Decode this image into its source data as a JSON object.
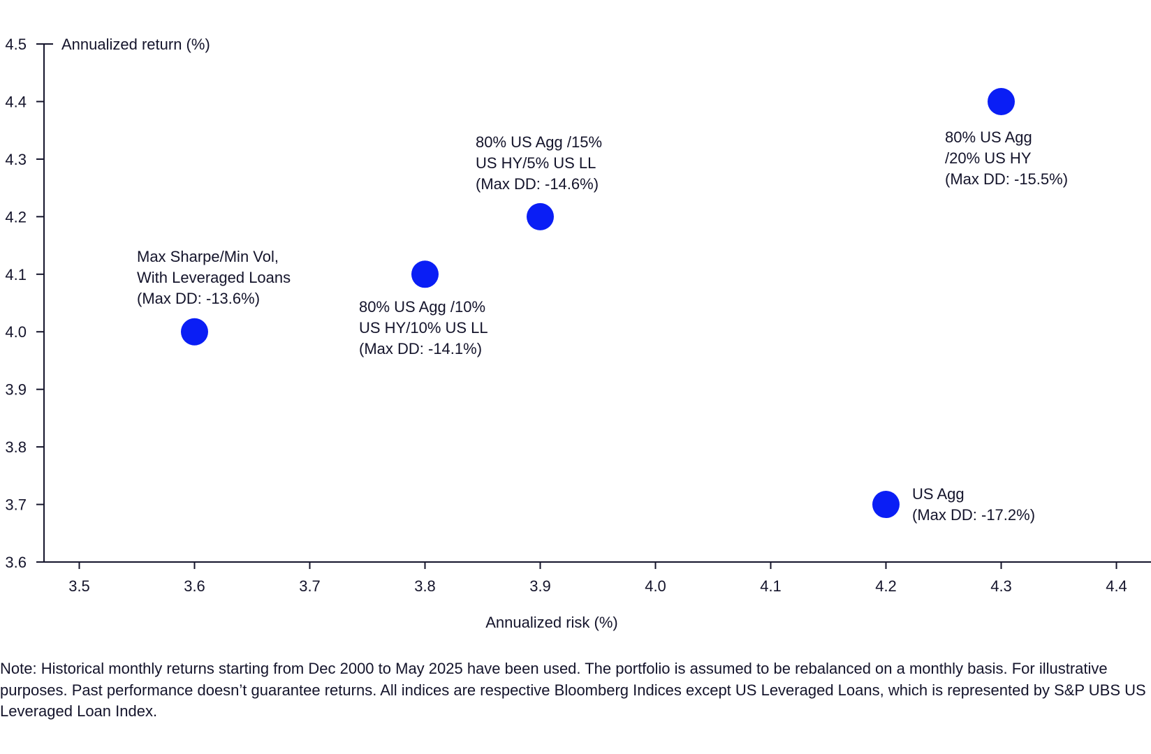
{
  "chart_data": {
    "type": "scatter",
    "title": "",
    "xlabel": "Annualized risk (%)",
    "ylabel": "Annualized return (%)",
    "xlim": [
      3.47,
      4.47
    ],
    "ylim": [
      3.6,
      4.5
    ],
    "xticks": [
      "3.5",
      "3.6",
      "3.7",
      "3.8",
      "3.9",
      "4.0",
      "4.1",
      "4.2",
      "4.3",
      "4.4"
    ],
    "yticks": [
      "3.6",
      "3.7",
      "3.8",
      "3.9",
      "4.0",
      "4.1",
      "4.2",
      "4.3",
      "4.4",
      "4.5"
    ],
    "grid": false,
    "marker_color": "#0a1ef5",
    "points": [
      {
        "x": 3.6,
        "y": 4.0,
        "label": "Max Sharpe/Min Vol,\nWith Leveraged Loans\n(Max DD: -13.6%)"
      },
      {
        "x": 3.8,
        "y": 4.1,
        "label": "80% US Agg /10%\nUS HY/10% US LL\n(Max DD: -14.1%)"
      },
      {
        "x": 3.9,
        "y": 4.2,
        "label": "80% US Agg /15%\nUS HY/5% US LL\n(Max DD: -14.6%)"
      },
      {
        "x": 4.3,
        "y": 4.4,
        "label": "80% US Agg\n/20% US HY\n(Max DD: -15.5%)"
      },
      {
        "x": 4.2,
        "y": 3.7,
        "label": "US Agg\n(Max DD: -17.2%)"
      }
    ]
  },
  "note": "Note: Historical monthly returns starting from Dec 2000 to May 2025 have been used. The portfolio is assumed to be rebalanced on a monthly basis. For illustrative purposes. Past performance doesn’t guarantee returns. All indices are respective Bloomberg Indices except US Leveraged Loans, which is represented by S&P UBS US Leveraged Loan Index."
}
